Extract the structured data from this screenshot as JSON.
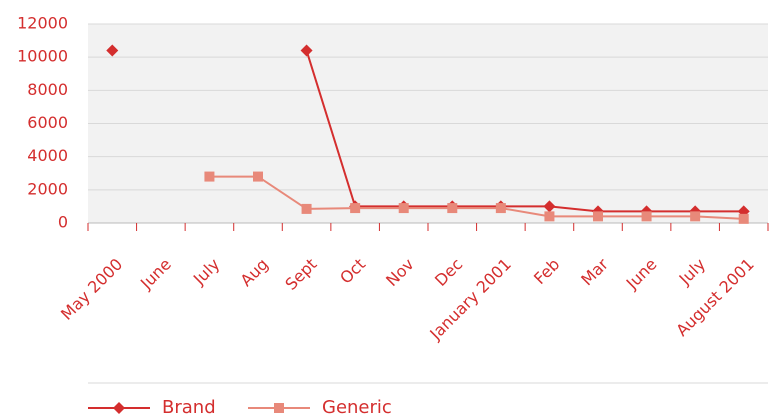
{
  "chart_data": {
    "type": "line",
    "categories": [
      "May 2000",
      "June",
      "July",
      "Aug",
      "Sept",
      "Oct",
      "Nov",
      "Dec",
      "January 2001",
      "Feb",
      "Mar",
      "June",
      "July",
      "August 2001"
    ],
    "series": [
      {
        "name": "Brand",
        "color": "#d42e2e",
        "marker": "diamond",
        "values": [
          10400,
          null,
          null,
          null,
          10400,
          1000,
          1000,
          1000,
          1000,
          1000,
          700,
          700,
          700,
          700
        ]
      },
      {
        "name": "Generic",
        "color": "#e8897a",
        "marker": "square",
        "values": [
          null,
          null,
          2800,
          2800,
          850,
          900,
          900,
          900,
          900,
          400,
          400,
          400,
          400,
          250
        ]
      }
    ],
    "ylim": [
      0,
      12000
    ],
    "yticks": [
      0,
      2000,
      4000,
      6000,
      8000,
      10000,
      12000
    ],
    "grid": true,
    "legend": "bottom"
  }
}
